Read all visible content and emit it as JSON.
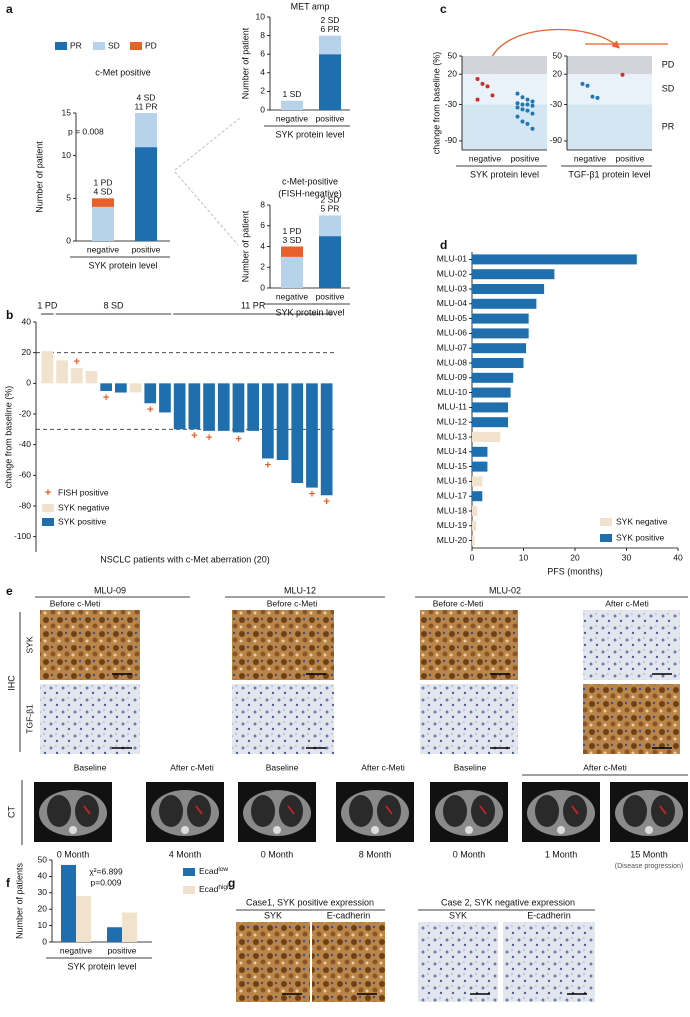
{
  "panel_labels": [
    "a",
    "b",
    "c",
    "d",
    "e",
    "f",
    "g"
  ],
  "chart_data": [
    {
      "type": "stackedbar",
      "title": "c-Met positive",
      "categories": [
        "negative",
        "positive"
      ],
      "series": [
        {
          "name": "PR",
          "color": "#1f6fae",
          "values": [
            0,
            11
          ]
        },
        {
          "name": "SD",
          "color": "#b6d3eb",
          "values": [
            4,
            4
          ]
        },
        {
          "name": "PD",
          "color": "#e8602c",
          "values": [
            1,
            0
          ]
        }
      ],
      "bar_labels": [
        [
          "1 PD",
          "4 SD"
        ],
        [
          "4 SD",
          "11 PR"
        ]
      ],
      "annotation": "p = 0.008",
      "xlabel": "SYK protein level",
      "ylabel": "Number of patient",
      "ylim": [
        0,
        15
      ],
      "yticks": [
        0,
        5,
        10,
        15
      ]
    },
    {
      "type": "stackedbar",
      "title": "MET amp",
      "categories": [
        "negative",
        "positive"
      ],
      "series": [
        {
          "color": "#1f6fae",
          "values": [
            0,
            6
          ]
        },
        {
          "color": "#b6d3eb",
          "values": [
            1,
            2
          ]
        }
      ],
      "bar_labels": [
        [
          "1 SD"
        ],
        [
          "2 SD",
          "6 PR"
        ]
      ],
      "xlabel": "SYK protein level",
      "ylabel": "Number of patient",
      "ylim": [
        0,
        10
      ],
      "yticks": [
        0,
        2,
        4,
        6,
        8,
        10
      ]
    },
    {
      "type": "stackedbar",
      "title": [
        "c-Met-positive",
        "(FISH-negative)"
      ],
      "categories": [
        "negative",
        "positive"
      ],
      "series": [
        {
          "color": "#1f6fae",
          "values": [
            0,
            5
          ]
        },
        {
          "color": "#b6d3eb",
          "values": [
            3,
            2
          ]
        },
        {
          "color": "#e8602c",
          "values": [
            1,
            0
          ]
        }
      ],
      "bar_labels": [
        [
          "1 PD",
          "3 SD"
        ],
        [
          "2 SD",
          "5 PR"
        ]
      ],
      "xlabel": "SYK protein level",
      "ylabel": "Number of patient",
      "ylim": [
        0,
        8
      ],
      "yticks": [
        0,
        2,
        4,
        6,
        8
      ]
    },
    {
      "type": "strip",
      "categories": [
        "negative",
        "positive"
      ],
      "series": [
        {
          "color": "#d42a2a",
          "values": [
            12,
            4,
            0,
            -15,
            -22
          ]
        },
        {
          "color": "#1f78b4",
          "values": [
            -12,
            -18,
            -22,
            -25,
            -28,
            -30,
            -30,
            -32,
            -35,
            -38,
            -40,
            -45,
            -50,
            -58,
            -62,
            -70
          ]
        }
      ],
      "zones": [
        20,
        -30
      ],
      "zone_colors": [
        "#d3d4d9",
        "#eaf2f9",
        "#d5e6f3"
      ],
      "xlabel": "SYK protein level",
      "ylabel": "change from baseline (%)",
      "ylim": [
        -105,
        50
      ],
      "yticks": [
        -90,
        -30,
        20,
        50
      ]
    },
    {
      "type": "strip",
      "categories": [
        "negative",
        "positive"
      ],
      "series": [
        {
          "color": "#1f78b4",
          "values": [
            4,
            1,
            -17,
            -19
          ]
        },
        {
          "color": "#d42a2a",
          "values": [
            19
          ]
        }
      ],
      "zones": [
        20,
        -30
      ],
      "zone_colors": [
        "#d3d4d9",
        "#eaf2f9",
        "#d5e6f3"
      ],
      "zone_labels": [
        "PD",
        "SD",
        "PR"
      ],
      "xlabel": "TGF-β1 protein level",
      "ylim": [
        -105,
        50
      ],
      "yticks": [
        -90,
        -30,
        20,
        50
      ]
    },
    {
      "type": "waterfall",
      "series": [
        {
          "name": "SYK negative",
          "color": "#f0e2cd",
          "values": [
            21,
            15,
            10,
            8,
            null,
            null,
            -6,
            null,
            null,
            null,
            null,
            null,
            null,
            null,
            null,
            null,
            null,
            null,
            null,
            null
          ]
        },
        {
          "name": "SYK positive",
          "color": "#1f6fae",
          "values": [
            null,
            null,
            null,
            null,
            -5,
            -6,
            null,
            -13,
            -19,
            -30,
            -30,
            -31,
            -31,
            -32,
            -31,
            -49,
            -50,
            -65,
            -68,
            -73
          ]
        }
      ],
      "markers": {
        "name": "FISH positive",
        "color": "#e8602c",
        "values": [
          false,
          false,
          true,
          false,
          true,
          false,
          false,
          true,
          false,
          false,
          true,
          true,
          false,
          true,
          false,
          true,
          false,
          false,
          true,
          true
        ]
      },
      "reference_lines": [
        20,
        -30
      ],
      "bracket_labels": [
        "1 PD",
        "8 SD",
        "11 PR"
      ],
      "xlabel": "NSCLC patients with c-Met aberration (20)",
      "ylabel": "change from baseline (%)",
      "ylim": [
        -110,
        40
      ],
      "yticks": [
        -100,
        -80,
        -60,
        -40,
        -20,
        0,
        20,
        40
      ]
    },
    {
      "type": "hbar",
      "categories": [
        "MLU-01",
        "MLU-02",
        "MLU-03",
        "MLU-04",
        "MLU-05",
        "MLU-06",
        "MLU-07",
        "MLU-08",
        "MLU-09",
        "MLU-10",
        "MLU-11",
        "MLU-12",
        "MLU-13",
        "MLU-14",
        "MLU-15",
        "MLU-16",
        "MLU-17",
        "MLU-18",
        "MLU-19",
        "MLU-20"
      ],
      "series": [
        {
          "name": "SYK negative",
          "color": "#f0e2cd",
          "values": [
            null,
            null,
            null,
            null,
            null,
            null,
            null,
            null,
            null,
            null,
            null,
            null,
            5.5,
            null,
            null,
            2,
            null,
            1,
            0.8,
            0.5
          ]
        },
        {
          "name": "SYK positive",
          "color": "#1f6fae",
          "values": [
            32,
            16,
            14,
            12.5,
            11,
            11,
            10.5,
            10,
            8,
            7.5,
            7,
            7,
            null,
            3,
            3,
            null,
            2,
            null,
            null,
            null
          ]
        }
      ],
      "xlabel": "PFS (months)",
      "xlim": [
        0,
        40
      ],
      "xticks": [
        0,
        10,
        20,
        30,
        40
      ]
    },
    {
      "type": "groupedbar",
      "categories": [
        "negative",
        "positive"
      ],
      "series": [
        {
          "name": "Ecad",
          "name_sup": "low",
          "color": "#1f6fae",
          "values": [
            47,
            9
          ]
        },
        {
          "name": "Ecad",
          "name_sup": "high",
          "color": "#f0e2cd",
          "values": [
            28,
            18
          ]
        }
      ],
      "annotations": [
        "χ²=6.899",
        "p=0.009"
      ],
      "xlabel": "SYK protein level",
      "ylabel": "Number of patients",
      "ylim": [
        0,
        50
      ],
      "yticks": [
        0,
        10,
        20,
        30,
        40,
        50
      ]
    }
  ],
  "panel_e": {
    "case_titles": [
      "MLU-09",
      "MLU-12",
      "MLU-02"
    ],
    "ihc_headers": [
      "Before c-Meti",
      "Before c-Meti",
      "Before c-Meti",
      "After c-Meti"
    ],
    "ihc_label": "IHC",
    "ihc_rows": [
      "SYK",
      "TGF-β1"
    ],
    "ct_label": "CT",
    "ct_headers": [
      "Baseline",
      "After c-Meti",
      "Baseline",
      "After c-Meti",
      "Baseline",
      "After c-Meti"
    ],
    "ct_times": [
      "0 Month",
      "4 Month",
      "0 Month",
      "8 Month",
      "0 Month",
      "1 Month",
      "15 Month"
    ],
    "ct_note": "(Disease progression)"
  },
  "panel_g": {
    "cases": [
      {
        "title": "Case1, SYK positive expression",
        "stains": [
          "SYK",
          "E-cadherin"
        ]
      },
      {
        "title": "Case 2, SYK negative expression",
        "stains": [
          "SYK",
          "E-cadherin"
        ]
      }
    ]
  }
}
